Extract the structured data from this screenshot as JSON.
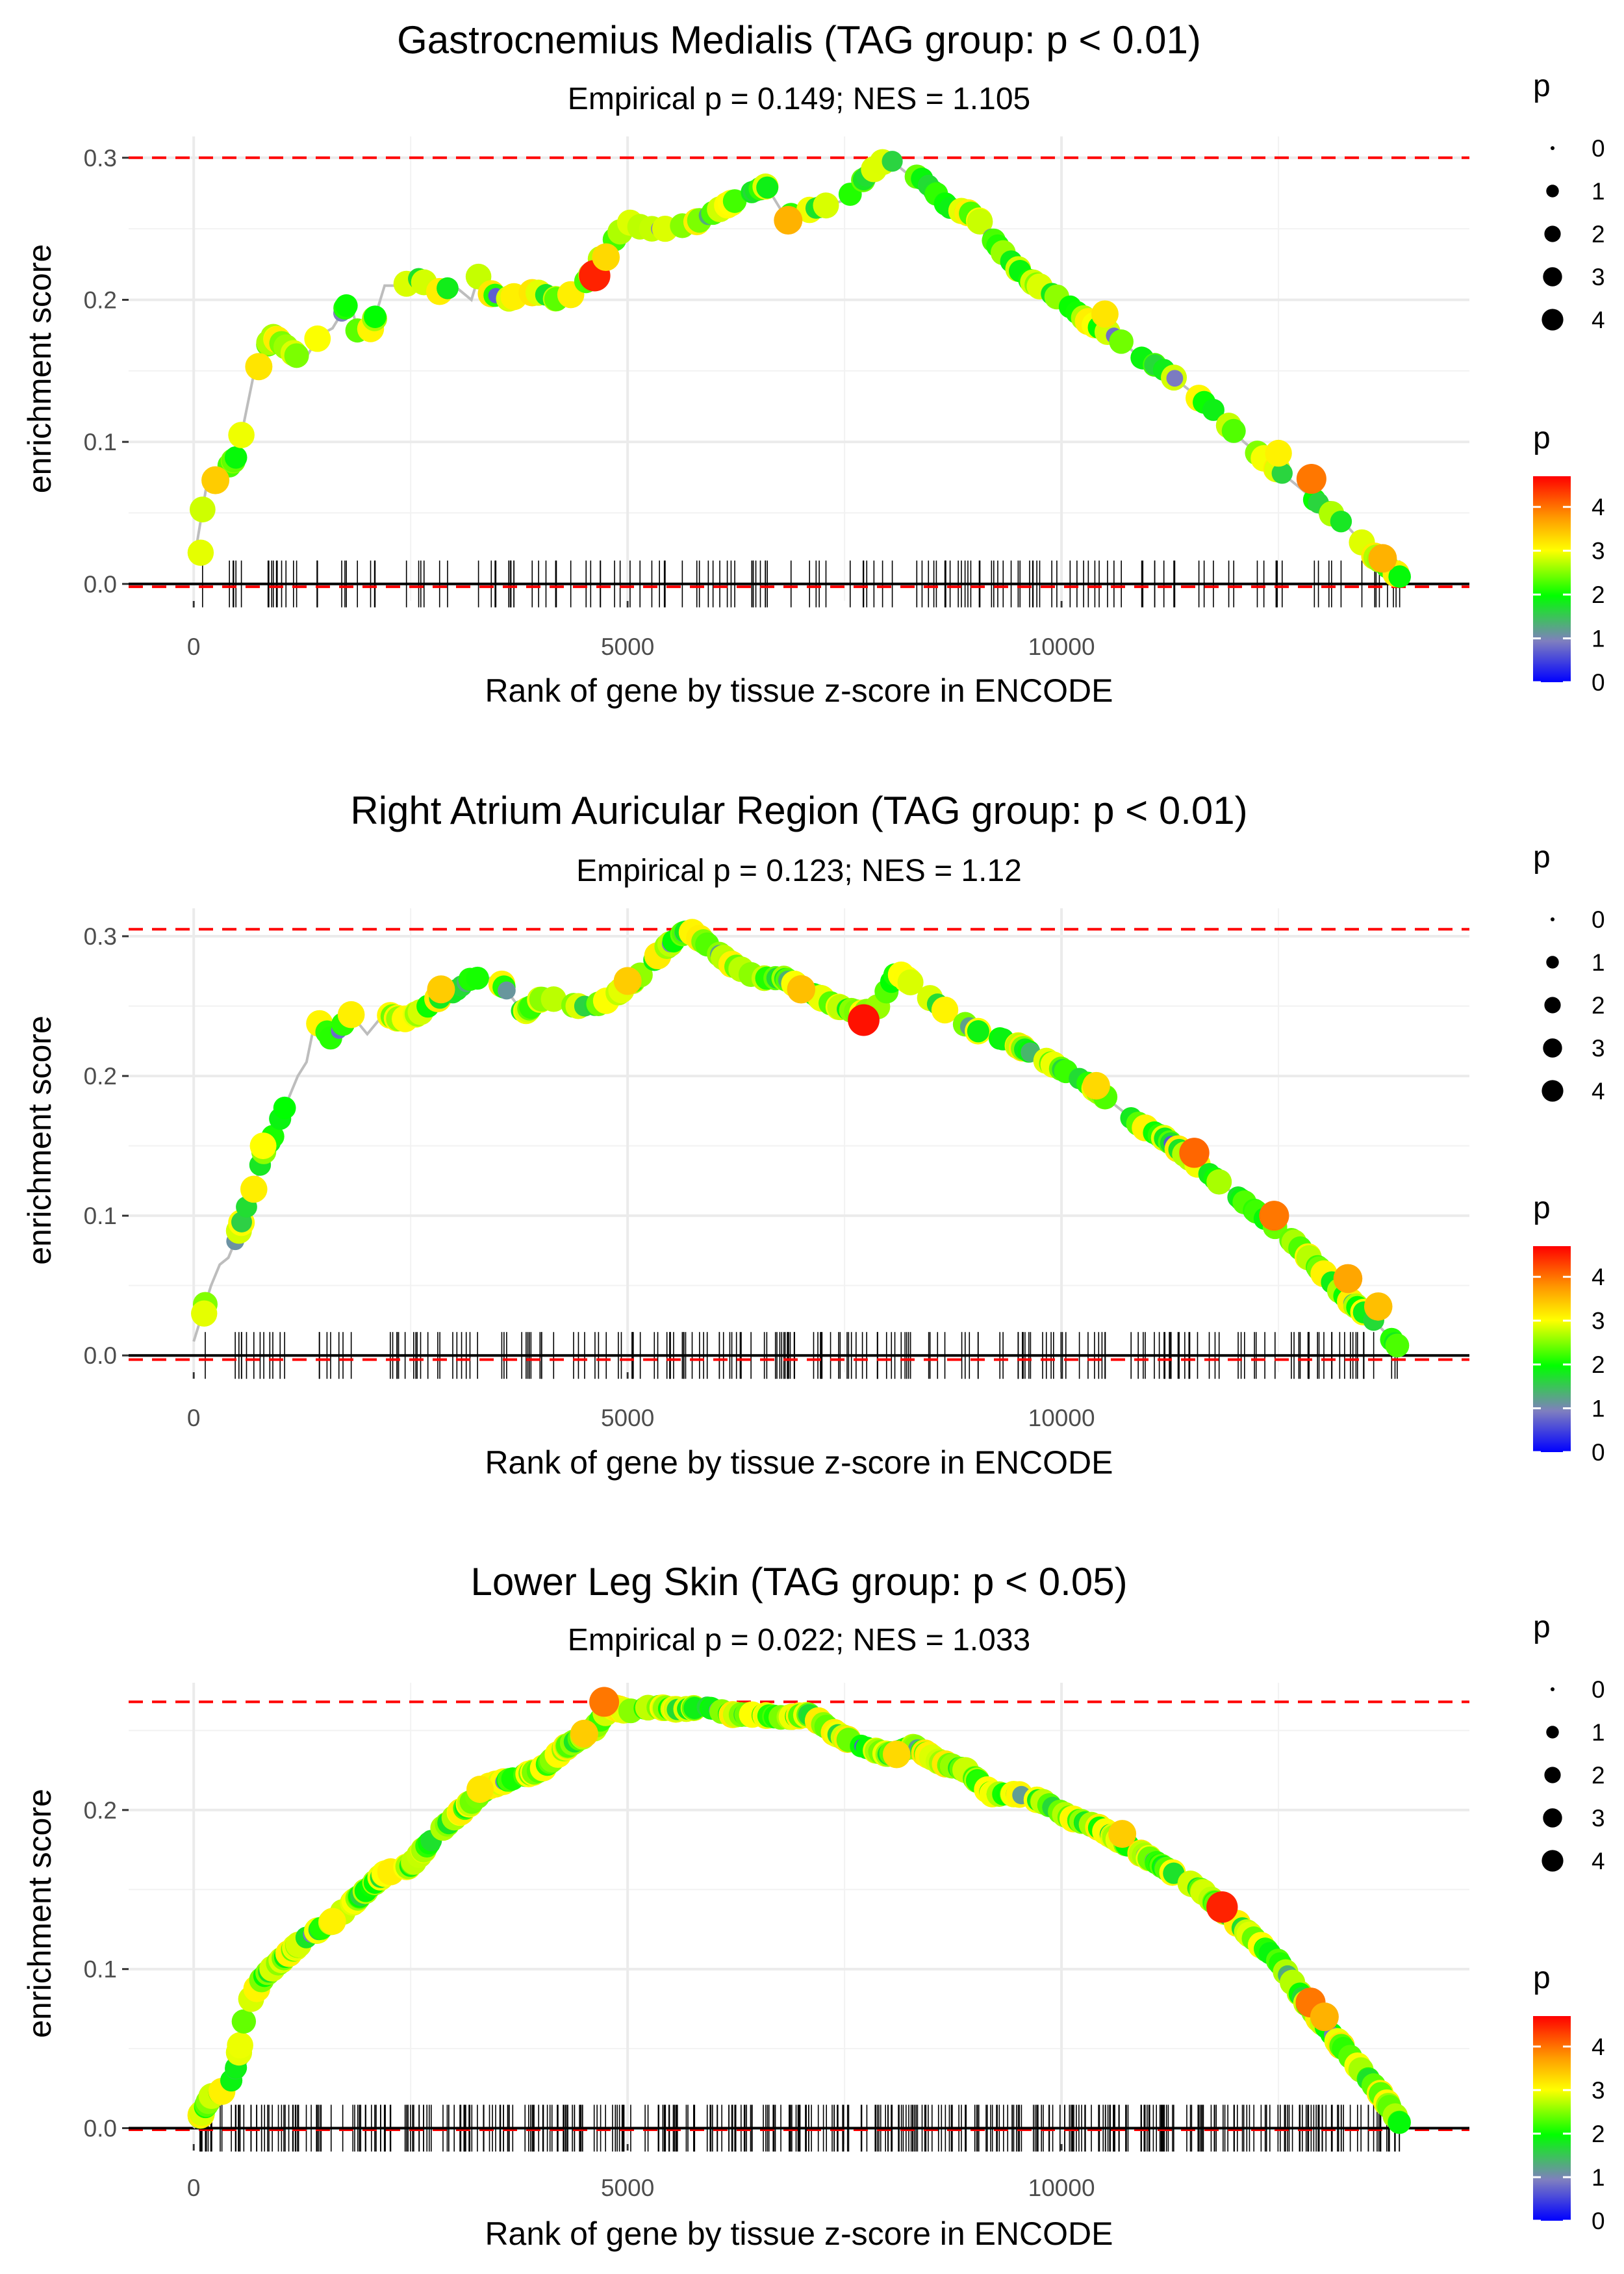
{
  "chart_data": [
    {
      "type": "line",
      "title": "Gastrocnemius Medialis (TAG group: p < 0.01)",
      "subtitle": "Empirical p = 0.149; NES = 1.105",
      "xlabel": "Rank of gene by tissue z-score in ENCODE",
      "ylabel": "enrichment score",
      "xlim": [
        -750,
        14700
      ],
      "ylim": [
        -0.012,
        0.315
      ],
      "xticks": [
        0,
        5000,
        10000
      ],
      "xtick_labels": [
        "0",
        "5000",
        "10000"
      ],
      "yticks": [
        0.0,
        0.1,
        0.2,
        0.3
      ],
      "ytick_labels": [
        "0.0",
        "0.1",
        "0.2",
        "0.3"
      ],
      "max_es": 0.3,
      "min_es": -0.002,
      "curve_x": [
        0,
        150,
        300,
        500,
        700,
        800,
        900,
        1000,
        1200,
        1300,
        1450,
        1600,
        1700,
        1800,
        1900,
        2050,
        2200,
        2400,
        2600,
        2800,
        3000,
        3200,
        3300,
        3400,
        3600,
        3800,
        4000,
        4200,
        4400,
        4550,
        4600,
        4700,
        5000,
        5200,
        5500,
        5800,
        6100,
        6400,
        6600,
        6800,
        6900,
        7200,
        7500,
        7800,
        8000,
        8200,
        8400,
        8700,
        9000,
        9300,
        9600,
        10000,
        10300,
        10600,
        10900,
        11200,
        11500,
        11800,
        12100,
        12400,
        12700,
        13000,
        13300,
        13600,
        13900
      ],
      "curve_y": [
        0.015,
        0.07,
        0.075,
        0.09,
        0.15,
        0.16,
        0.175,
        0.17,
        0.16,
        0.16,
        0.175,
        0.18,
        0.19,
        0.2,
        0.175,
        0.18,
        0.21,
        0.21,
        0.215,
        0.205,
        0.21,
        0.2,
        0.22,
        0.205,
        0.2,
        0.205,
        0.205,
        0.2,
        0.205,
        0.215,
        0.22,
        0.23,
        0.255,
        0.25,
        0.25,
        0.255,
        0.265,
        0.275,
        0.28,
        0.26,
        0.26,
        0.265,
        0.27,
        0.29,
        0.3,
        0.29,
        0.285,
        0.265,
        0.26,
        0.235,
        0.215,
        0.2,
        0.185,
        0.175,
        0.16,
        0.15,
        0.135,
        0.12,
        0.1,
        0.085,
        0.07,
        0.055,
        0.04,
        0.02,
        0.005
      ],
      "highlight_points": [
        {
          "x": 4620,
          "y": 0.217,
          "p": 4.5
        },
        {
          "x": 12880,
          "y": 0.074,
          "p": 4.0
        },
        {
          "x": 6850,
          "y": 0.256,
          "p": 3.6
        },
        {
          "x": 13700,
          "y": 0.018,
          "p": 3.6
        },
        {
          "x": 250,
          "y": 0.073,
          "p": 3.4
        },
        {
          "x": 750,
          "y": 0.153,
          "p": 3.2
        },
        {
          "x": 4750,
          "y": 0.23,
          "p": 3.3
        },
        {
          "x": 10500,
          "y": 0.19,
          "p": 3.2
        },
        {
          "x": 12500,
          "y": 0.092,
          "p": 3.1
        },
        {
          "x": 80,
          "y": 0.022,
          "p": 2.9
        }
      ],
      "rug_x_range": [
        60,
        13900
      ],
      "rug_count": 160,
      "legend_size": {
        "title": "p",
        "values": [
          "0",
          "1",
          "2",
          "3",
          "4"
        ]
      },
      "legend_color": {
        "title": "p",
        "ticks": [
          "0",
          "1",
          "2",
          "3",
          "4"
        ],
        "max": 4.7
      }
    },
    {
      "type": "line",
      "title": "Right Atrium Auricular Region (TAG group: p < 0.01)",
      "subtitle": "Empirical p = 0.123; NES = 1.12",
      "xlabel": "Rank of gene by tissue z-score in ENCODE",
      "ylabel": "enrichment score",
      "xlim": [
        -750,
        14700
      ],
      "ylim": [
        -0.012,
        0.32
      ],
      "xticks": [
        0,
        5000,
        10000
      ],
      "xtick_labels": [
        "0",
        "5000",
        "10000"
      ],
      "yticks": [
        0.0,
        0.1,
        0.2,
        0.3
      ],
      "ytick_labels": [
        "0.0",
        "0.1",
        "0.2",
        "0.3"
      ],
      "max_es": 0.305,
      "min_es": -0.003,
      "curve_x": [
        0,
        100,
        200,
        300,
        400,
        500,
        600,
        700,
        800,
        900,
        1000,
        1100,
        1200,
        1300,
        1400,
        1500,
        1600,
        1800,
        2000,
        2200,
        2400,
        2600,
        2800,
        3000,
        3200,
        3500,
        3800,
        4000,
        4200,
        4400,
        4600,
        4800,
        5000,
        5200,
        5400,
        5600,
        5700,
        5900,
        6200,
        6500,
        6800,
        7100,
        7400,
        7700,
        7900,
        8100,
        8300,
        8500,
        8800,
        9100,
        9400,
        9700,
        10000,
        10300,
        10600,
        10900,
        11200,
        11500,
        11800,
        12100,
        12400,
        12700,
        13000,
        13300,
        13600,
        13900
      ],
      "curve_y": [
        0.01,
        0.03,
        0.05,
        0.065,
        0.07,
        0.085,
        0.105,
        0.12,
        0.145,
        0.155,
        0.17,
        0.185,
        0.2,
        0.21,
        0.24,
        0.235,
        0.225,
        0.245,
        0.23,
        0.245,
        0.24,
        0.245,
        0.255,
        0.26,
        0.27,
        0.27,
        0.245,
        0.255,
        0.255,
        0.25,
        0.25,
        0.255,
        0.265,
        0.275,
        0.29,
        0.3,
        0.305,
        0.295,
        0.28,
        0.27,
        0.27,
        0.26,
        0.25,
        0.245,
        0.25,
        0.275,
        0.265,
        0.255,
        0.24,
        0.23,
        0.225,
        0.215,
        0.205,
        0.195,
        0.18,
        0.165,
        0.155,
        0.14,
        0.125,
        0.11,
        0.095,
        0.08,
        0.06,
        0.04,
        0.025,
        0.005
      ],
      "highlight_points": [
        {
          "x": 7720,
          "y": 0.24,
          "p": 4.6
        },
        {
          "x": 11530,
          "y": 0.145,
          "p": 4.1
        },
        {
          "x": 12450,
          "y": 0.1,
          "p": 4.0
        },
        {
          "x": 13300,
          "y": 0.055,
          "p": 3.7
        },
        {
          "x": 13650,
          "y": 0.035,
          "p": 3.5
        },
        {
          "x": 7000,
          "y": 0.262,
          "p": 3.5
        },
        {
          "x": 5000,
          "y": 0.268,
          "p": 3.4
        },
        {
          "x": 2850,
          "y": 0.262,
          "p": 3.4
        },
        {
          "x": 10400,
          "y": 0.193,
          "p": 3.3
        },
        {
          "x": 800,
          "y": 0.15,
          "p": 3.0
        },
        {
          "x": 120,
          "y": 0.03,
          "p": 2.9
        }
      ],
      "rug_x_range": [
        60,
        13900
      ],
      "rug_count": 210,
      "legend_size": {
        "title": "p",
        "values": [
          "0",
          "1",
          "2",
          "3",
          "4"
        ]
      },
      "legend_color": {
        "title": "p",
        "ticks": [
          "0",
          "1",
          "2",
          "3",
          "4"
        ],
        "max": 4.7
      }
    },
    {
      "type": "line",
      "title": "Lower Leg Skin (TAG group: p < 0.05)",
      "subtitle": "Empirical p = 0.022; NES = 1.033",
      "xlabel": "Rank of gene by tissue z-score in ENCODE",
      "ylabel": "enrichment score",
      "xlim": [
        -750,
        14700
      ],
      "ylim": [
        -0.01,
        0.28
      ],
      "xticks": [
        0,
        5000,
        10000
      ],
      "xtick_labels": [
        "0",
        "5000",
        "10000"
      ],
      "yticks": [
        0.0,
        0.1,
        0.2
      ],
      "ytick_labels": [
        "0.0",
        "0.1",
        "0.2"
      ],
      "max_es": 0.268,
      "min_es": -0.001,
      "curve_x": [
        0,
        200,
        400,
        500,
        600,
        800,
        1000,
        1300,
        1600,
        1900,
        2200,
        2500,
        2800,
        3100,
        3400,
        3700,
        4000,
        4300,
        4600,
        4800,
        5000,
        5300,
        5600,
        5900,
        6200,
        6500,
        6800,
        7100,
        7400,
        7700,
        8000,
        8300,
        8600,
        8900,
        9200,
        9500,
        9800,
        10100,
        10400,
        10700,
        11000,
        11300,
        11600,
        11900,
        12200,
        12500,
        12800,
        13100,
        13400,
        13700,
        13900
      ],
      "curve_y": [
        0.0,
        0.02,
        0.025,
        0.04,
        0.075,
        0.095,
        0.105,
        0.12,
        0.13,
        0.145,
        0.16,
        0.165,
        0.185,
        0.2,
        0.215,
        0.22,
        0.225,
        0.24,
        0.25,
        0.265,
        0.262,
        0.265,
        0.263,
        0.265,
        0.26,
        0.26,
        0.258,
        0.26,
        0.248,
        0.24,
        0.235,
        0.24,
        0.23,
        0.225,
        0.21,
        0.21,
        0.205,
        0.195,
        0.19,
        0.18,
        0.17,
        0.16,
        0.15,
        0.135,
        0.12,
        0.105,
        0.08,
        0.06,
        0.04,
        0.02,
        0.003
      ],
      "highlight_points": [
        {
          "x": 11850,
          "y": 0.139,
          "p": 4.5
        },
        {
          "x": 4730,
          "y": 0.268,
          "p": 4.0
        },
        {
          "x": 12870,
          "y": 0.079,
          "p": 4.0
        },
        {
          "x": 13030,
          "y": 0.07,
          "p": 3.6
        },
        {
          "x": 10700,
          "y": 0.185,
          "p": 3.4
        },
        {
          "x": 4500,
          "y": 0.248,
          "p": 3.4
        },
        {
          "x": 8100,
          "y": 0.235,
          "p": 3.3
        },
        {
          "x": 3300,
          "y": 0.213,
          "p": 3.2
        },
        {
          "x": 1600,
          "y": 0.13,
          "p": 3.1
        }
      ],
      "rug_x_range": [
        60,
        13900
      ],
      "rug_count": 440,
      "legend_size": {
        "title": "p",
        "values": [
          "0",
          "1",
          "2",
          "3",
          "4"
        ]
      },
      "legend_color": {
        "title": "p",
        "ticks": [
          "0",
          "1",
          "2",
          "3",
          "4"
        ],
        "max": 4.7
      }
    }
  ]
}
